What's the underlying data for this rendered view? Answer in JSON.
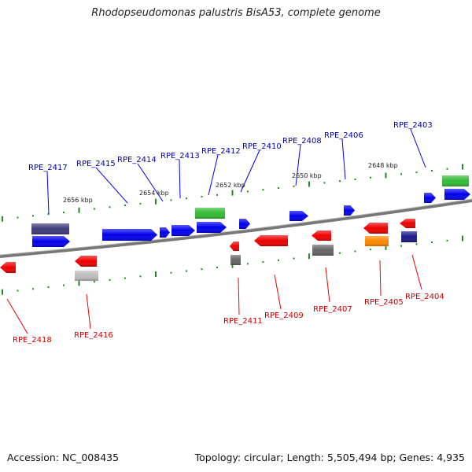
{
  "title": "Rhodopseudomonas palustris BisA53, complete genome",
  "footer": {
    "accession": "Accession: NC_008435",
    "summary": "Topology: circular; Length: 5,505,494 bp; Genes: 4,935"
  },
  "scale_labels": [
    "2656 kbp",
    "2654 kbp",
    "2652 kbp",
    "2650 kbp",
    "2648 kbp"
  ],
  "forward_genes": [
    "RPE_2417",
    "RPE_2415",
    "RPE_2414",
    "RPE_2413",
    "RPE_2412",
    "RPE_2410",
    "RPE_2408",
    "RPE_2406",
    "RPE_2403"
  ],
  "reverse_genes": [
    "RPE_2418",
    "RPE_2416",
    "RPE_2411",
    "RPE_2409",
    "RPE_2407",
    "RPE_2405",
    "RPE_2404"
  ],
  "colors": {
    "forward_label": "#0000aa",
    "reverse_label": "#cc0000",
    "cds_forward": "#0000ee",
    "cds_reverse": "#ee0000",
    "rna": "#33bb33",
    "pseudo_gray": "#666666",
    "light_gray": "#bbbbbb",
    "navy": "#1a1a8c",
    "slate": "#3b3b7a",
    "orange": "#ff8800",
    "backbone": "#777777",
    "tick": "#228822"
  }
}
